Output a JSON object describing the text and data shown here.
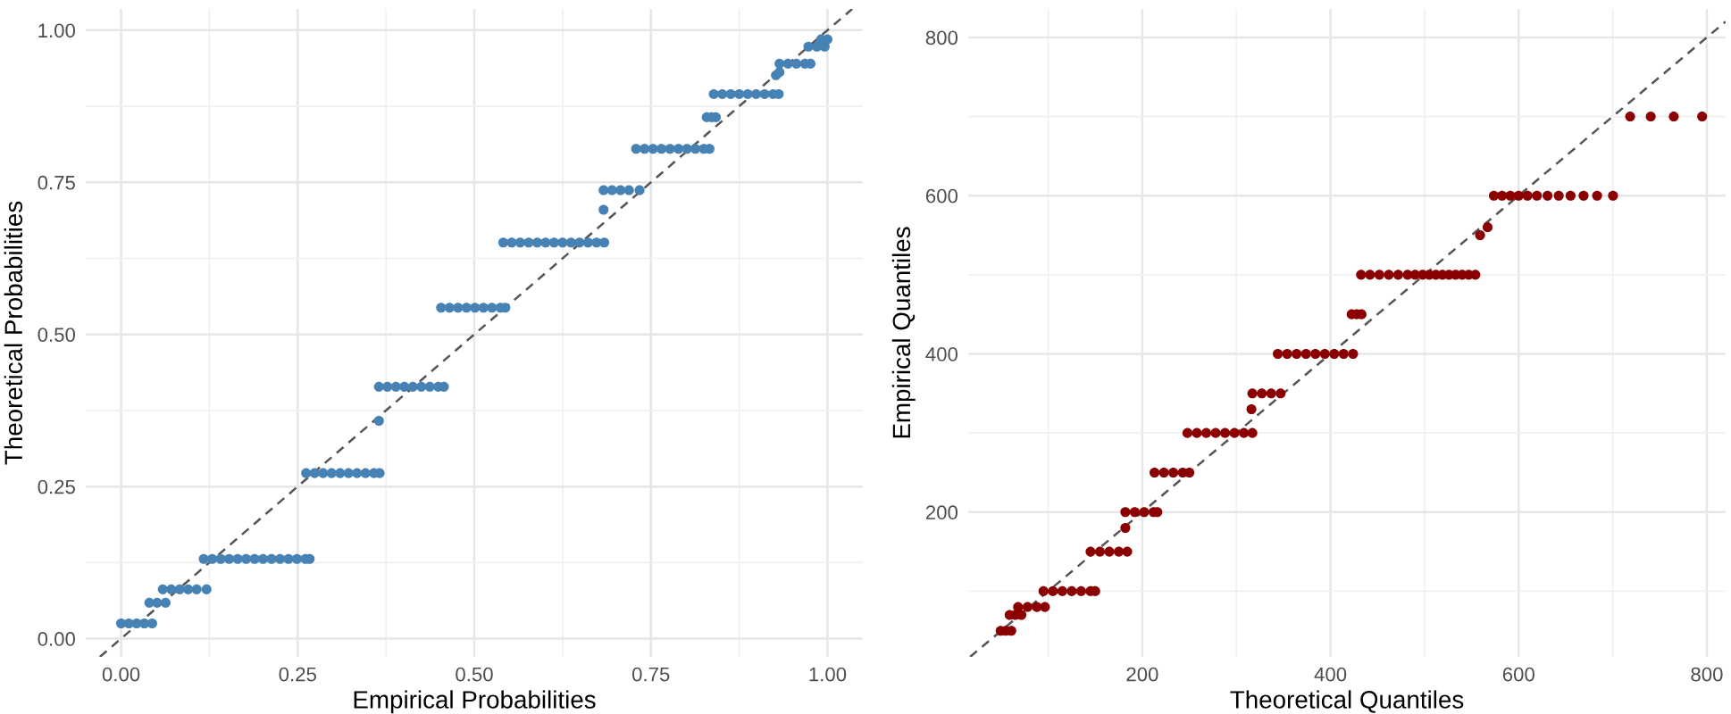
{
  "chart_data": [
    {
      "type": "scatter",
      "xlabel": "Empirical Probabilities",
      "ylabel": "Theoretical Probabilities",
      "grid": true,
      "xlim": [
        -0.05,
        1.05
      ],
      "ylim": [
        -0.03,
        1.035
      ],
      "xticks": [
        {
          "value": 0,
          "label": "0.00"
        },
        {
          "value": 0.25,
          "label": "0.25"
        },
        {
          "value": 0.5,
          "label": "0.50"
        },
        {
          "value": 0.75,
          "label": "0.75"
        },
        {
          "value": 1,
          "label": "1.00"
        }
      ],
      "yticks": [
        {
          "value": 0,
          "label": "0.00"
        },
        {
          "value": 0.25,
          "label": "0.25"
        },
        {
          "value": 0.5,
          "label": "0.50"
        },
        {
          "value": 0.75,
          "label": "0.75"
        },
        {
          "value": 1,
          "label": "1.00"
        }
      ],
      "series": [
        {
          "color": "#4682b4",
          "marker": "circle",
          "x": [
            0.0,
            0.011,
            0.022,
            0.033,
            0.044,
            0.04,
            0.051,
            0.063,
            0.059,
            0.071,
            0.083,
            0.095,
            0.107,
            0.121,
            0.117,
            0.129,
            0.141,
            0.153,
            0.165,
            0.177,
            0.189,
            0.201,
            0.213,
            0.225,
            0.237,
            0.249,
            0.261,
            0.267,
            0.262,
            0.274,
            0.286,
            0.298,
            0.31,
            0.322,
            0.334,
            0.346,
            0.358,
            0.366,
            0.365,
            0.365,
            0.377,
            0.389,
            0.401,
            0.413,
            0.425,
            0.437,
            0.449,
            0.457,
            0.453,
            0.465,
            0.477,
            0.489,
            0.501,
            0.513,
            0.525,
            0.537,
            0.544,
            0.541,
            0.553,
            0.565,
            0.577,
            0.589,
            0.601,
            0.613,
            0.625,
            0.637,
            0.649,
            0.661,
            0.673,
            0.684,
            0.683,
            0.683,
            0.695,
            0.707,
            0.719,
            0.734,
            0.729,
            0.741,
            0.753,
            0.765,
            0.777,
            0.789,
            0.801,
            0.813,
            0.825,
            0.833,
            0.829,
            0.836,
            0.842,
            0.839,
            0.851,
            0.863,
            0.875,
            0.887,
            0.899,
            0.911,
            0.923,
            0.931,
            0.927,
            0.932,
            0.932,
            0.944,
            0.956,
            0.968,
            0.976,
            0.973,
            0.985,
            0.996,
            0.991,
            1.0
          ],
          "values": [
            0.025,
            0.025,
            0.025,
            0.025,
            0.025,
            0.059,
            0.059,
            0.059,
            0.081,
            0.081,
            0.081,
            0.081,
            0.081,
            0.081,
            0.131,
            0.131,
            0.131,
            0.131,
            0.131,
            0.131,
            0.131,
            0.131,
            0.131,
            0.131,
            0.131,
            0.131,
            0.131,
            0.131,
            0.272,
            0.272,
            0.272,
            0.272,
            0.272,
            0.272,
            0.272,
            0.272,
            0.272,
            0.272,
            0.358,
            0.414,
            0.414,
            0.414,
            0.414,
            0.414,
            0.414,
            0.414,
            0.414,
            0.414,
            0.544,
            0.544,
            0.544,
            0.544,
            0.544,
            0.544,
            0.544,
            0.544,
            0.544,
            0.651,
            0.651,
            0.651,
            0.651,
            0.651,
            0.651,
            0.651,
            0.651,
            0.651,
            0.651,
            0.651,
            0.651,
            0.651,
            0.705,
            0.737,
            0.737,
            0.737,
            0.737,
            0.737,
            0.805,
            0.805,
            0.805,
            0.805,
            0.805,
            0.805,
            0.805,
            0.805,
            0.805,
            0.805,
            0.857,
            0.857,
            0.857,
            0.895,
            0.895,
            0.895,
            0.895,
            0.895,
            0.895,
            0.895,
            0.895,
            0.895,
            0.926,
            0.931,
            0.945,
            0.945,
            0.945,
            0.945,
            0.945,
            0.973,
            0.973,
            0.973,
            0.985,
            0.985
          ]
        },
        {
          "type": "line",
          "color": "#555555",
          "line_style": "dashed",
          "marker": "none",
          "x": [
            -0.03,
            1.035
          ],
          "values": [
            -0.03,
            1.035
          ]
        }
      ]
    },
    {
      "type": "scatter",
      "xlabel": "Theoretical Quantiles",
      "ylabel": "Empirical Quantiles",
      "grid": true,
      "xlim": [
        15,
        820
      ],
      "ylim": [
        17,
        836
      ],
      "xticks": [
        200,
        400,
        600,
        800
      ],
      "yticks": [
        200,
        400,
        600,
        800
      ],
      "series": [
        {
          "color": "#8b0000",
          "marker": "circle",
          "x": [
            49.5,
            55,
            60.8,
            59,
            65,
            71.5,
            68,
            78,
            88,
            96.5,
            95,
            105,
            115,
            125,
            135,
            145,
            150,
            145,
            155,
            165,
            175,
            184,
            182,
            182,
            192,
            202,
            212,
            216,
            213,
            223,
            233,
            243,
            250,
            248,
            258,
            268,
            278,
            288,
            298,
            308,
            317,
            316,
            317,
            327,
            337,
            347,
            344,
            354,
            364,
            374,
            384,
            394,
            404,
            414,
            424,
            422.5,
            428,
            433,
            432.5,
            442,
            452,
            462,
            472,
            482,
            490,
            498,
            505,
            512,
            519,
            526,
            533,
            540,
            547,
            554,
            559,
            567,
            573.7,
            582.4,
            591.2,
            600,
            609.4,
            619.4,
            630.7,
            642.6,
            655.2,
            669,
            683.4,
            700.3,
            718.5,
            740.4,
            764.9,
            795
          ],
          "values": [
            50,
            50,
            50,
            70,
            70,
            70,
            80,
            80,
            80,
            80,
            100,
            100,
            100,
            100,
            100,
            100,
            100,
            150,
            150,
            150,
            150,
            150,
            180,
            200,
            200,
            200,
            200,
            200,
            250,
            250,
            250,
            250,
            250,
            300,
            300,
            300,
            300,
            300,
            300,
            300,
            300,
            330,
            350,
            350,
            350,
            350,
            400,
            400,
            400,
            400,
            400,
            400,
            400,
            400,
            400,
            450,
            450,
            450,
            500,
            500,
            500,
            500,
            500,
            500,
            500,
            500,
            500,
            500,
            500,
            500,
            500,
            500,
            500,
            500,
            550,
            560,
            600,
            600,
            600,
            600,
            600,
            600,
            600,
            600,
            600,
            600,
            600,
            600,
            700,
            700,
            700,
            700
          ]
        },
        {
          "type": "line",
          "color": "#555555",
          "line_style": "dashed",
          "marker": "none",
          "x": [
            17,
            820
          ],
          "values": [
            17,
            820
          ]
        }
      ]
    }
  ]
}
